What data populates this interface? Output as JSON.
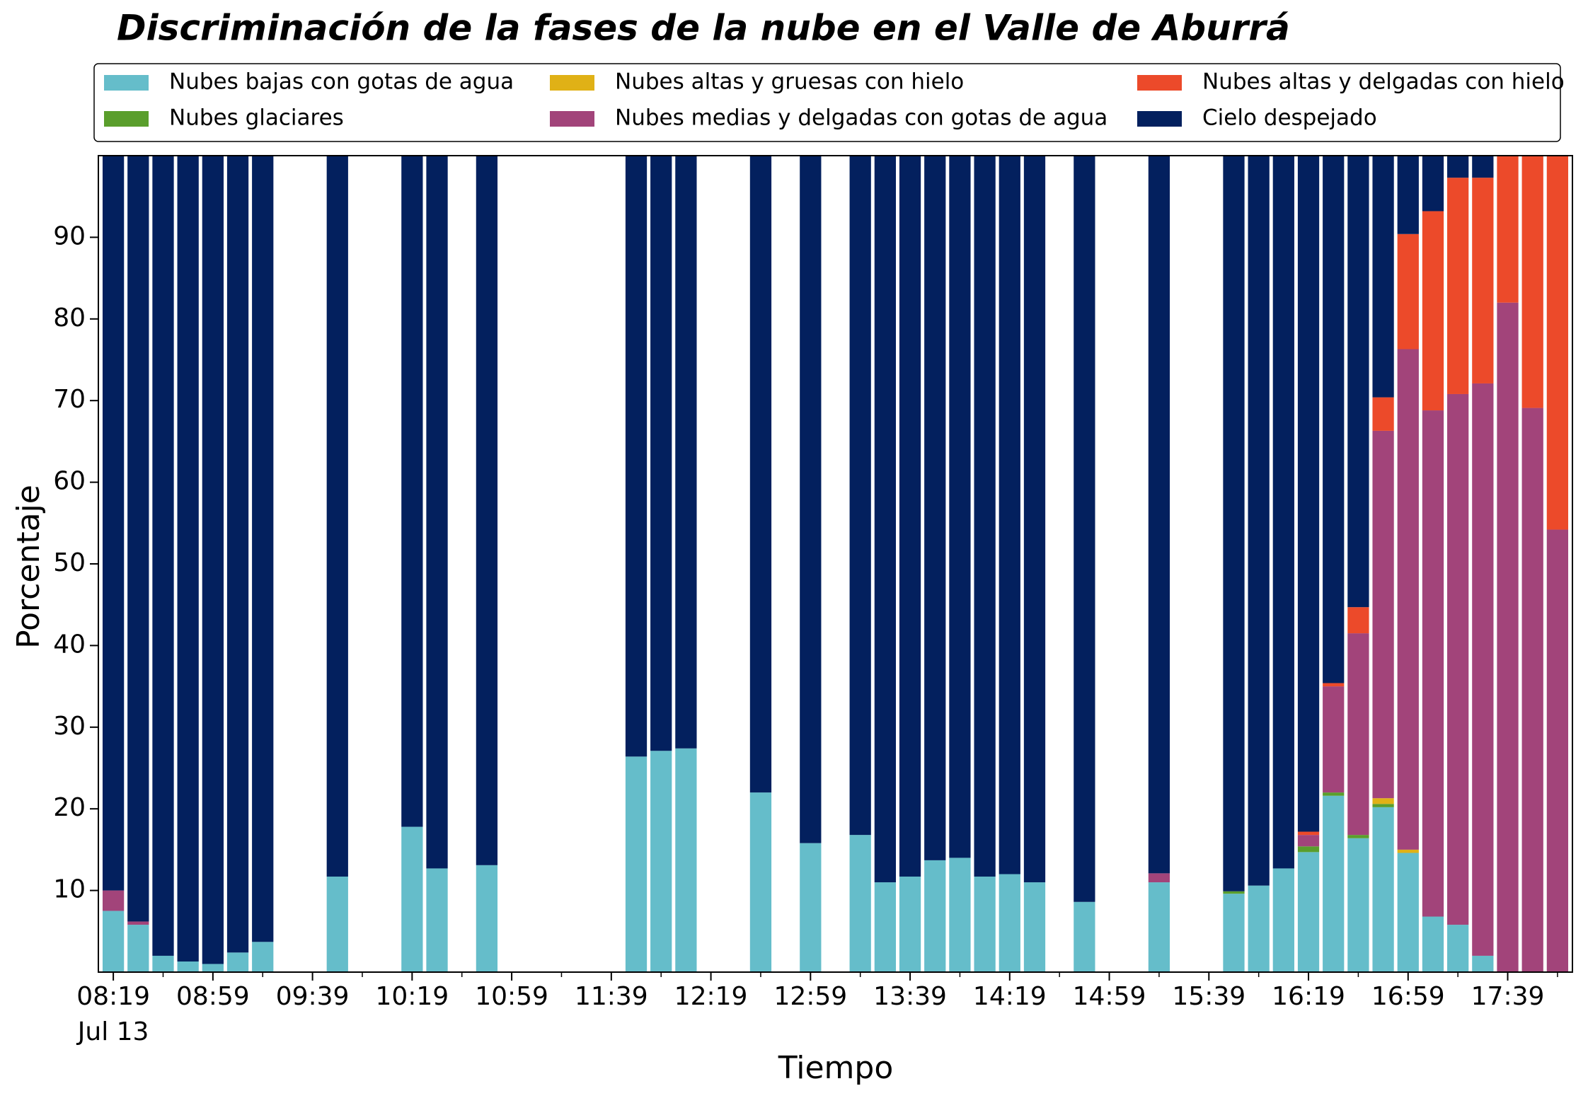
{
  "chart_data": {
    "type": "stacked_bar",
    "title": "Discriminación de la fases de la nube en el Valle de Aburrá",
    "x_label": "Tiempo",
    "y_label": "Porcentaje",
    "x": [
      "08:19",
      "08:29",
      "08:39",
      "08:49",
      "08:59",
      "09:09",
      "09:19",
      "09:49",
      "10:19",
      "10:29",
      "10:49",
      "11:49",
      "11:59",
      "12:09",
      "12:39",
      "12:59",
      "13:19",
      "13:29",
      "13:39",
      "13:49",
      "13:59",
      "14:09",
      "14:19",
      "14:29",
      "14:49",
      "15:19",
      "15:49",
      "15:59",
      "16:09",
      "16:19",
      "16:29",
      "16:39",
      "16:49",
      "16:59",
      "17:09",
      "17:19",
      "17:29",
      "17:39",
      "17:49",
      "17:59"
    ],
    "x_date_label": "Jul 13",
    "xlim": [
      "08:13",
      "18:05"
    ],
    "xticks": [
      "08:19",
      "08:59",
      "09:39",
      "10:19",
      "10:59",
      "11:39",
      "12:19",
      "12:59",
      "13:39",
      "14:19",
      "14:59",
      "15:39",
      "16:19",
      "16:59",
      "17:39"
    ],
    "ylim": [
      0,
      100
    ],
    "yticks": [
      10,
      20,
      30,
      40,
      50,
      60,
      70,
      80,
      90
    ],
    "legend": "top",
    "legend_columns": 3,
    "series": [
      {
        "name": "Nubes bajas con gotas de agua",
        "color": "#65bdca",
        "values": [
          7.5,
          5.8,
          2.0,
          1.3,
          1.0,
          2.4,
          3.7,
          11.7,
          17.8,
          12.7,
          13.1,
          26.4,
          27.1,
          27.4,
          22.0,
          15.8,
          16.8,
          11.0,
          11.7,
          13.7,
          14.0,
          11.7,
          12.0,
          11.0,
          8.6,
          11.0,
          9.6,
          10.6,
          12.7,
          14.7,
          21.6,
          16.4,
          20.2,
          14.6,
          6.8,
          5.8,
          2.0,
          0,
          0,
          0
        ]
      },
      {
        "name": "Nubes glaciares",
        "color": "#5a9e2c",
        "values": [
          0,
          0,
          0,
          0,
          0,
          0,
          0,
          0,
          0,
          0,
          0,
          0,
          0,
          0,
          0,
          0,
          0,
          0,
          0,
          0,
          0,
          0,
          0,
          0,
          0,
          0,
          0.3,
          0,
          0,
          0.7,
          0.4,
          0.4,
          0.4,
          0,
          0,
          0,
          0,
          0,
          0,
          0
        ]
      },
      {
        "name": "Nubes altas y gruesas con hielo",
        "color": "#e0b116",
        "values": [
          0,
          0,
          0,
          0,
          0,
          0,
          0,
          0,
          0,
          0,
          0,
          0,
          0,
          0,
          0,
          0,
          0,
          0,
          0,
          0,
          0,
          0,
          0,
          0,
          0,
          0,
          0,
          0,
          0,
          0,
          0,
          0,
          0.7,
          0.4,
          0,
          0,
          0,
          0,
          0,
          0
        ]
      },
      {
        "name": "Nubes medias y delgadas con gotas de agua",
        "color": "#a2447a",
        "values": [
          2.5,
          0.4,
          0,
          0,
          0,
          0,
          0,
          0,
          0,
          0,
          0,
          0,
          0,
          0,
          0,
          0,
          0,
          0,
          0,
          0,
          0,
          0,
          0,
          0,
          0,
          1.1,
          0,
          0,
          0,
          1.4,
          13.0,
          24.7,
          45.0,
          61.3,
          62.0,
          65.0,
          70.1,
          82.0,
          69.1,
          54.2
        ]
      },
      {
        "name": "Nubes altas y delgadas con hielo",
        "color": "#ec4a2a",
        "values": [
          0,
          0,
          0,
          0,
          0,
          0,
          0,
          0,
          0,
          0,
          0,
          0,
          0,
          0,
          0,
          0,
          0,
          0,
          0,
          0,
          0,
          0,
          0,
          0,
          0,
          0,
          0,
          0,
          0,
          0.4,
          0.4,
          3.2,
          4.1,
          14.1,
          24.4,
          26.5,
          25.2,
          18.0,
          30.9,
          45.8
        ]
      },
      {
        "name": "Cielo despejado",
        "color": "#03205e",
        "values": [
          90,
          93.8,
          98,
          98.7,
          99,
          97.6,
          96.3,
          88.3,
          82.2,
          87.3,
          86.9,
          73.6,
          72.9,
          72.6,
          78,
          84.2,
          83.2,
          89,
          88.3,
          86.3,
          86,
          88.3,
          88,
          89,
          91.4,
          87.9,
          90.1,
          89.4,
          87.3,
          82.8,
          64.6,
          55.3,
          29.6,
          9.6,
          6.8,
          2.7,
          2.7,
          0,
          0,
          0
        ]
      }
    ]
  }
}
